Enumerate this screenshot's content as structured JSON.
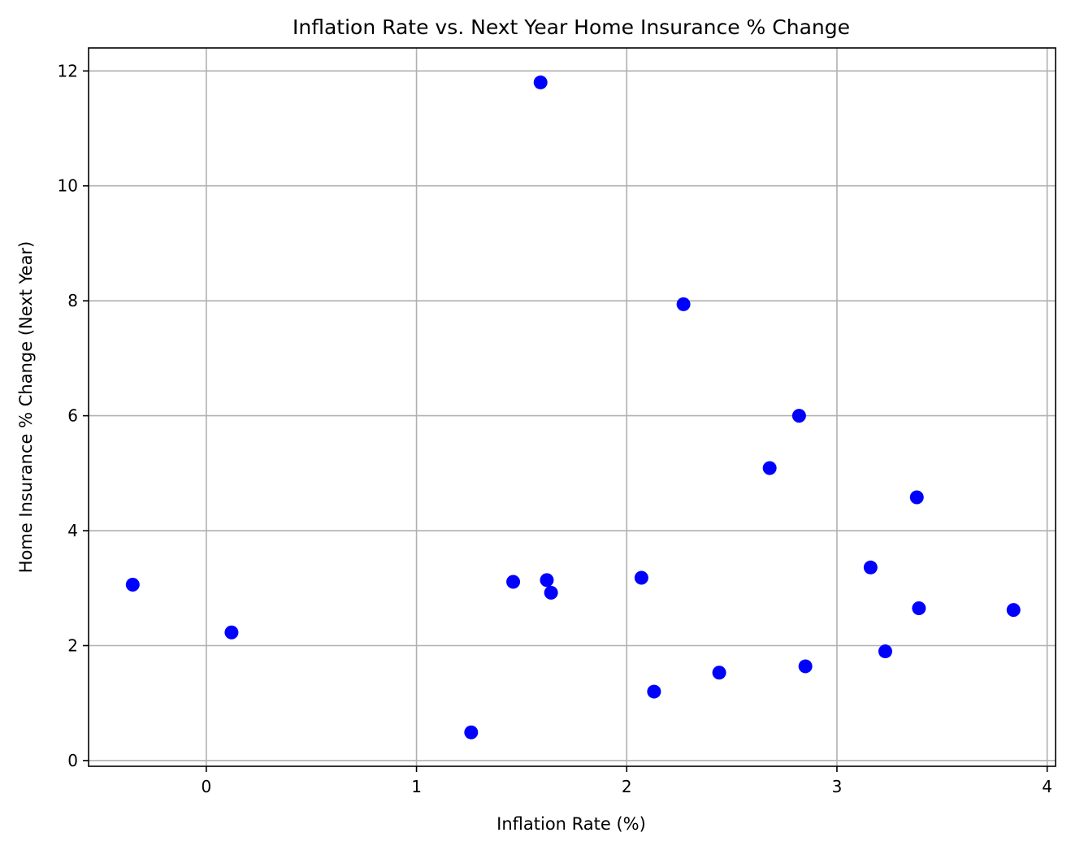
{
  "chart_data": {
    "type": "scatter",
    "title": "Inflation Rate vs. Next Year Home Insurance % Change",
    "xlabel": "Inflation Rate (%)",
    "ylabel": "Home Insurance % Change (Next Year)",
    "xlim": [
      -0.56,
      4.04
    ],
    "ylim": [
      -0.1,
      12.4
    ],
    "xticks": [
      0,
      1,
      2,
      3,
      4
    ],
    "yticks": [
      0,
      2,
      4,
      6,
      8,
      10,
      12
    ],
    "grid": true,
    "marker_color": "#0000ff",
    "points": [
      {
        "x": -0.35,
        "y": 3.06
      },
      {
        "x": 0.12,
        "y": 2.23
      },
      {
        "x": 1.26,
        "y": 0.49
      },
      {
        "x": 1.46,
        "y": 3.11
      },
      {
        "x": 1.59,
        "y": 11.8
      },
      {
        "x": 1.62,
        "y": 3.14
      },
      {
        "x": 1.64,
        "y": 2.92
      },
      {
        "x": 2.07,
        "y": 3.18
      },
      {
        "x": 2.13,
        "y": 1.2
      },
      {
        "x": 2.27,
        "y": 7.94
      },
      {
        "x": 2.44,
        "y": 1.53
      },
      {
        "x": 2.68,
        "y": 5.09
      },
      {
        "x": 2.82,
        "y": 6.0
      },
      {
        "x": 2.85,
        "y": 1.64
      },
      {
        "x": 3.16,
        "y": 3.36
      },
      {
        "x": 3.23,
        "y": 1.9
      },
      {
        "x": 3.38,
        "y": 4.58
      },
      {
        "x": 3.39,
        "y": 2.65
      },
      {
        "x": 3.84,
        "y": 2.62
      }
    ]
  }
}
